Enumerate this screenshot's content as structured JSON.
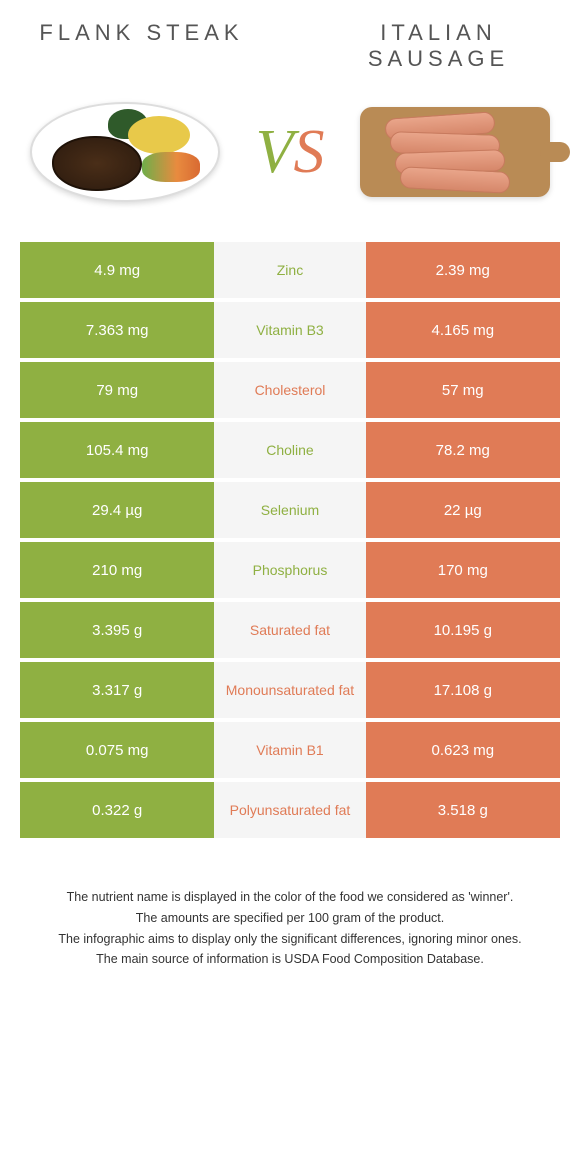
{
  "colors": {
    "left": "#8fb042",
    "right": "#e07b56",
    "mid_bg": "#f5f5f5",
    "text_dark": "#333333",
    "title_color": "#555555"
  },
  "header": {
    "left_title": "FLANK STEAK",
    "right_title": "ITALIAN SAUSAGE",
    "vs_v": "V",
    "vs_s": "S"
  },
  "rows": [
    {
      "left": "4.9 mg",
      "label": "Zinc",
      "right": "2.39 mg",
      "winner": "left"
    },
    {
      "left": "7.363 mg",
      "label": "Vitamin B3",
      "right": "4.165 mg",
      "winner": "left"
    },
    {
      "left": "79 mg",
      "label": "Cholesterol",
      "right": "57 mg",
      "winner": "right"
    },
    {
      "left": "105.4 mg",
      "label": "Choline",
      "right": "78.2 mg",
      "winner": "left"
    },
    {
      "left": "29.4 µg",
      "label": "Selenium",
      "right": "22 µg",
      "winner": "left"
    },
    {
      "left": "210 mg",
      "label": "Phosphorus",
      "right": "170 mg",
      "winner": "left"
    },
    {
      "left": "3.395 g",
      "label": "Saturated fat",
      "right": "10.195 g",
      "winner": "right"
    },
    {
      "left": "3.317 g",
      "label": "Monounsaturated fat",
      "right": "17.108 g",
      "winner": "right"
    },
    {
      "left": "0.075 mg",
      "label": "Vitamin B1",
      "right": "0.623 mg",
      "winner": "right"
    },
    {
      "left": "0.322 g",
      "label": "Polyunsaturated fat",
      "right": "3.518 g",
      "winner": "right"
    }
  ],
  "footnotes": [
    "The nutrient name is displayed in the color of the food we considered as 'winner'.",
    "The amounts are specified per 100 gram of the product.",
    "The infographic aims to display only the significant differences, ignoring minor ones.",
    "The main source of information is USDA Food Composition Database."
  ]
}
